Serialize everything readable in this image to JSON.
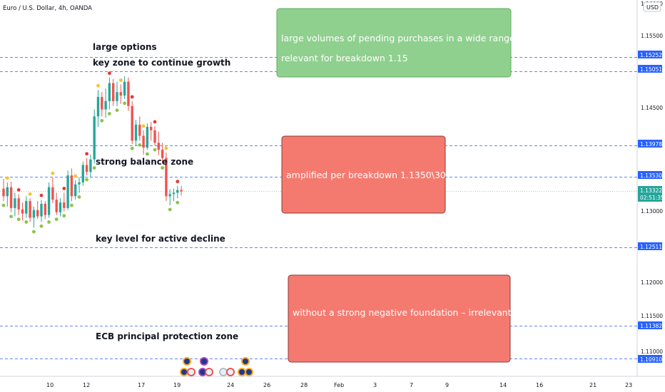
{
  "header": {
    "symbol_title": "Euro / U.S. Dollar, 4h, OANDA"
  },
  "currency_badge": "USD",
  "price_ticks": [
    "1.16000",
    "1.15500",
    "1.14500",
    "1.13000",
    "1.12000",
    "1.11500",
    "1.11000"
  ],
  "date_ticks": [
    "10",
    "12",
    "17",
    "19",
    "24",
    "26",
    "28",
    "Feb",
    "3",
    "7",
    "9",
    "14",
    "16",
    "21",
    "23"
  ],
  "level_tags": [
    "1.15252",
    "1.15051",
    "1.13978",
    "1.13530",
    "1.12511",
    "1.11382",
    "1.10910"
  ],
  "current_price": {
    "price": "1.13322",
    "countdown": "02:51:35"
  },
  "annotations": {
    "large_options": "large options",
    "key_zone": "key zone to continue growth",
    "strong_balance": "strong balance zone",
    "key_level_decline": "key level for active decline",
    "ecb_zone": "ECB principal protection zone"
  },
  "boxes": {
    "green_line1": "large volumes of pending purchases in a wide range",
    "green_line2": "relevant for breakdown 1.15",
    "red_mid": "amplified per breakdown 1.1350\\30",
    "red_bottom": "without a strong negative foundation – irrelevant"
  },
  "colors": {
    "bull": "#26a69a",
    "bear": "#ef5350",
    "green_box": "#8fd08f",
    "red_box": "#f47a70",
    "level_line": "#2962ff",
    "tag_bg": "#2962ff",
    "current_tag": "#26a69a",
    "dot_green": "#8bc34a",
    "dot_red": "#e53935",
    "dot_yellow": "#fbc02d"
  },
  "chart_data": {
    "type": "candlestick",
    "symbol": "EURUSD",
    "timeframe": "4h",
    "price_axis_ticks": [
      1.16,
      1.155,
      1.145,
      1.13,
      1.12,
      1.115,
      1.11
    ],
    "horizontal_levels": [
      1.15252,
      1.15051,
      1.13978,
      1.1353,
      1.12511,
      1.11382,
      1.1091
    ],
    "current_price": 1.13322,
    "ohlc": [
      [
        1.1336,
        1.135,
        1.1318,
        1.1325
      ],
      [
        1.1325,
        1.1345,
        1.131,
        1.1338
      ],
      [
        1.1338,
        1.1346,
        1.1302,
        1.1308
      ],
      [
        1.1308,
        1.133,
        1.1296,
        1.1322
      ],
      [
        1.1322,
        1.1328,
        1.1298,
        1.1306
      ],
      [
        1.1306,
        1.1316,
        1.129,
        1.13
      ],
      [
        1.13,
        1.1325,
        1.1294,
        1.1318
      ],
      [
        1.1318,
        1.1322,
        1.1288,
        1.1294
      ],
      [
        1.1294,
        1.131,
        1.128,
        1.1305
      ],
      [
        1.1305,
        1.1318,
        1.1292,
        1.1296
      ],
      [
        1.1296,
        1.132,
        1.1288,
        1.1314
      ],
      [
        1.1314,
        1.1318,
        1.1292,
        1.1298
      ],
      [
        1.1298,
        1.1345,
        1.1294,
        1.1338
      ],
      [
        1.1338,
        1.1352,
        1.1315,
        1.132
      ],
      [
        1.132,
        1.133,
        1.1298,
        1.1302
      ],
      [
        1.1302,
        1.1322,
        1.1296,
        1.1316
      ],
      [
        1.1316,
        1.133,
        1.1303,
        1.1308
      ],
      [
        1.1308,
        1.1362,
        1.1305,
        1.1355
      ],
      [
        1.1355,
        1.1365,
        1.1318,
        1.1325
      ],
      [
        1.1325,
        1.1348,
        1.132,
        1.1342
      ],
      [
        1.1342,
        1.1352,
        1.133,
        1.1345
      ],
      [
        1.1345,
        1.1375,
        1.134,
        1.137
      ],
      [
        1.137,
        1.138,
        1.1355,
        1.136
      ],
      [
        1.136,
        1.1385,
        1.1352,
        1.1378
      ],
      [
        1.1378,
        1.145,
        1.1372,
        1.144
      ],
      [
        1.144,
        1.1478,
        1.1425,
        1.1468
      ],
      [
        1.1468,
        1.1475,
        1.144,
        1.145
      ],
      [
        1.145,
        1.148,
        1.1438,
        1.1462
      ],
      [
        1.1462,
        1.1496,
        1.145,
        1.1488
      ],
      [
        1.1488,
        1.1494,
        1.1455,
        1.1462
      ],
      [
        1.1462,
        1.149,
        1.1455,
        1.1475
      ],
      [
        1.1475,
        1.1486,
        1.1458,
        1.147
      ],
      [
        1.147,
        1.1498,
        1.1465,
        1.149
      ],
      [
        1.149,
        1.1496,
        1.1448,
        1.1455
      ],
      [
        1.1455,
        1.1462,
        1.14,
        1.1405
      ],
      [
        1.1405,
        1.1435,
        1.1398,
        1.1428
      ],
      [
        1.1428,
        1.144,
        1.1405,
        1.1412
      ],
      [
        1.1412,
        1.142,
        1.1385,
        1.1395
      ],
      [
        1.1395,
        1.143,
        1.1392,
        1.1425
      ],
      [
        1.1425,
        1.1432,
        1.1405,
        1.142
      ],
      [
        1.142,
        1.1426,
        1.1398,
        1.1402
      ],
      [
        1.1402,
        1.1418,
        1.1384,
        1.1392
      ],
      [
        1.1392,
        1.1402,
        1.1372,
        1.138
      ],
      [
        1.138,
        1.1388,
        1.1318,
        1.1325
      ],
      [
        1.1325,
        1.1335,
        1.1312,
        1.1328
      ],
      [
        1.1328,
        1.1336,
        1.1318,
        1.133
      ],
      [
        1.133,
        1.134,
        1.1322,
        1.1334
      ],
      [
        1.1334,
        1.134,
        1.1326,
        1.1332
      ]
    ]
  }
}
